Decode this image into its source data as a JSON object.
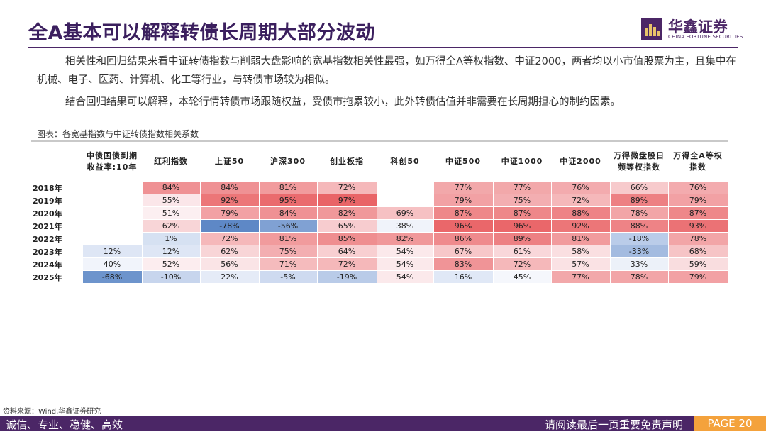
{
  "header": {
    "title": "全A基本可以解释转债长周期大部分波动",
    "logo_cn": "华鑫证券",
    "logo_en": "CHINA FORTUNE SECURITIES"
  },
  "body": {
    "para1": "相关性和回归结果来看中证转债指数与削弱大盘影响的宽基指数相关性最强，如万得全A等权指数、中证2000，两者均以小市值股票为主，且集中在机械、电子、医药、计算机、化工等行业，与转债市场较为相似。",
    "para2": "结合回归结果可以解释，本轮行情转债市场跟随权益，受债市拖累较小，此外转债估值并非需要在长周期担心的制约因素。"
  },
  "table": {
    "caption": "图表：各宽基指数与中证转债指数相关系数",
    "columns": [
      "",
      "中债国债到期收益率:10年",
      "红利指数",
      "上证50",
      "沪深300",
      "创业板指",
      "科创50",
      "中证500",
      "中证1000",
      "中证2000",
      "万得微盘股日频等权指数",
      "万得全A等权指数"
    ],
    "rows": [
      {
        "year": "2018年",
        "cells": [
          null,
          "84%",
          "84%",
          "81%",
          "72%",
          null,
          "77%",
          "77%",
          "76%",
          "66%",
          "76%"
        ]
      },
      {
        "year": "2019年",
        "cells": [
          null,
          "55%",
          "92%",
          "95%",
          "97%",
          null,
          "79%",
          "75%",
          "72%",
          "89%",
          "79%"
        ]
      },
      {
        "year": "2020年",
        "cells": [
          null,
          "51%",
          "79%",
          "84%",
          "82%",
          "69%",
          "87%",
          "87%",
          "88%",
          "78%",
          "87%"
        ]
      },
      {
        "year": "2021年",
        "cells": [
          null,
          "62%",
          "-78%",
          "-56%",
          "65%",
          "38%",
          "96%",
          "96%",
          "92%",
          "88%",
          "93%"
        ]
      },
      {
        "year": "2022年",
        "cells": [
          null,
          "1%",
          "72%",
          "81%",
          "85%",
          "82%",
          "86%",
          "89%",
          "81%",
          "-18%",
          "78%"
        ]
      },
      {
        "year": "2023年",
        "cells": [
          "12%",
          "12%",
          "62%",
          "75%",
          "64%",
          "54%",
          "67%",
          "61%",
          "58%",
          "-33%",
          "68%"
        ]
      },
      {
        "year": "2024年",
        "cells": [
          "40%",
          "52%",
          "56%",
          "71%",
          "72%",
          "54%",
          "83%",
          "72%",
          "57%",
          "33%",
          "59%"
        ]
      },
      {
        "year": "2025年",
        "cells": [
          "-68%",
          "-10%",
          "22%",
          "-5%",
          "-19%",
          "54%",
          "16%",
          "45%",
          "77%",
          "78%",
          "79%"
        ]
      }
    ]
  },
  "source": "资料来源：Wind,华鑫证券研究",
  "footer": {
    "left": "诚信、专业、稳健、高效",
    "right": "请阅读最后一页重要免责声明",
    "page": "PAGE 20"
  },
  "colors": {
    "brand_purple": "#4b2666",
    "page_orange": "#f4a23c",
    "positive_high": "#e8595c",
    "negative_high": "#5b86c5"
  }
}
